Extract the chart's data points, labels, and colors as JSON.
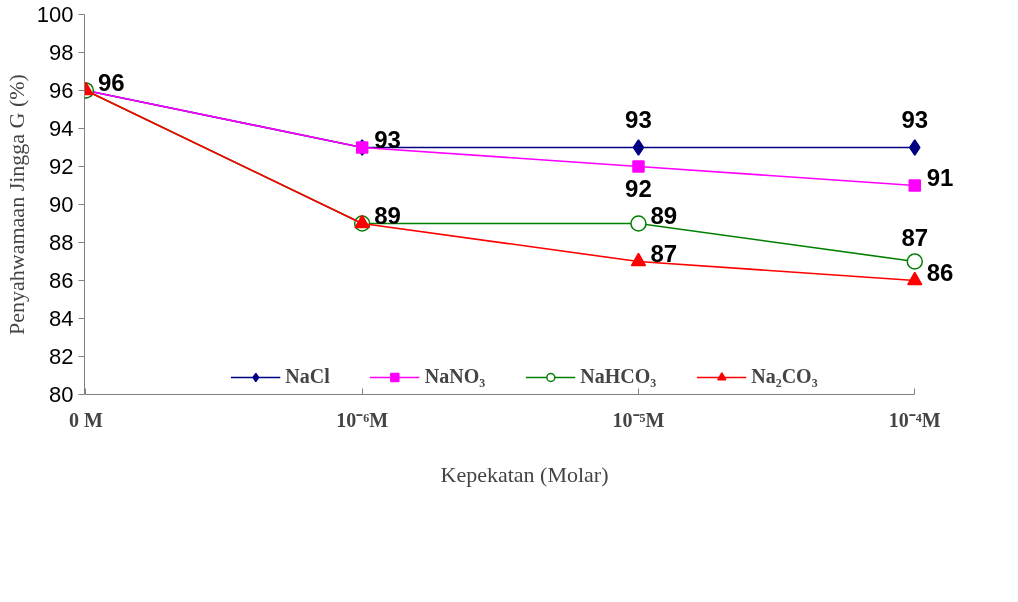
{
  "chart_data": {
    "type": "line",
    "xlabel": "Kepekatan (Molar)",
    "ylabel": "Penyahwamaan Jingga G (%)",
    "categories": [
      "0 M",
      "10⁻⁶M",
      "10⁻⁵M",
      "10⁻⁴M"
    ],
    "ylim": [
      80,
      100
    ],
    "yticks": [
      80,
      82,
      84,
      86,
      88,
      90,
      92,
      94,
      96,
      98,
      100
    ],
    "grid": false,
    "legend": "bottom",
    "series": [
      {
        "name": "NaCl",
        "color": "#000080",
        "marker": "diamond",
        "values": [
          96,
          93,
          93,
          93
        ],
        "value_labels": [
          "96",
          "93",
          "93",
          "93"
        ]
      },
      {
        "name": "NaNO₃",
        "color": "#ff00ff",
        "marker": "square",
        "values": [
          96,
          93,
          92,
          91
        ],
        "value_labels": [
          null,
          null,
          "92",
          "91"
        ]
      },
      {
        "name": "NaHCO₃",
        "color": "#008000",
        "marker": "circle",
        "values": [
          96,
          89,
          89,
          87
        ],
        "value_labels": [
          null,
          "89",
          "89",
          "87"
        ]
      },
      {
        "name": "Na₂CO₃",
        "color": "#ff0000",
        "marker": "triangle",
        "values": [
          96,
          89,
          87,
          86
        ],
        "value_labels": [
          null,
          null,
          "87",
          "86"
        ]
      }
    ]
  }
}
